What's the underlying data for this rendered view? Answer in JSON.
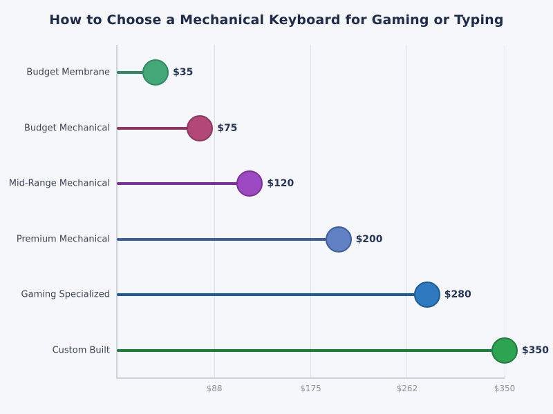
{
  "title": "How to Choose a Mechanical Keyboard for Gaming or Typing",
  "chart_data": {
    "type": "bar",
    "style": "lollipop",
    "orientation": "horizontal",
    "title": "How to Choose a Mechanical Keyboard for Gaming or Typing",
    "categories": [
      "Budget Membrane",
      "Budget Mechanical",
      "Mid-Range Mechanical",
      "Premium Mechanical",
      "Gaming Specialized",
      "Custom Built"
    ],
    "values": [
      35,
      75,
      120,
      200,
      280,
      350
    ],
    "value_labels": [
      "$35",
      "$75",
      "$120",
      "$200",
      "$280",
      "$350"
    ],
    "xlabel": "",
    "ylabel": "",
    "xlim": [
      0,
      350
    ],
    "xticks": [
      {
        "value": 88,
        "label": "$88"
      },
      {
        "value": 175,
        "label": "$175"
      },
      {
        "value": 262,
        "label": "$262"
      },
      {
        "value": 350,
        "label": "$350"
      }
    ],
    "grid": "vertical",
    "legend": "none",
    "point_colors": [
      {
        "fill": "#43a876",
        "edge": "#2d8a60"
      },
      {
        "fill": "#b34878",
        "edge": "#8d3560"
      },
      {
        "fill": "#9c49c2",
        "edge": "#7a2f9e"
      },
      {
        "fill": "#6181c4",
        "edge": "#3c5fa0"
      },
      {
        "fill": "#2e79c0",
        "edge": "#1d5a99"
      },
      {
        "fill": "#2ca452",
        "edge": "#1e7c3c"
      }
    ]
  },
  "colors": {
    "background": "#f5f7fa",
    "title_text": "#1f2b4d",
    "category_text": "#3c4454",
    "value_text": "#27345a",
    "tick_text": "#8a909d",
    "gridline": "#e0e3ea",
    "spine": "#ccd1da"
  }
}
